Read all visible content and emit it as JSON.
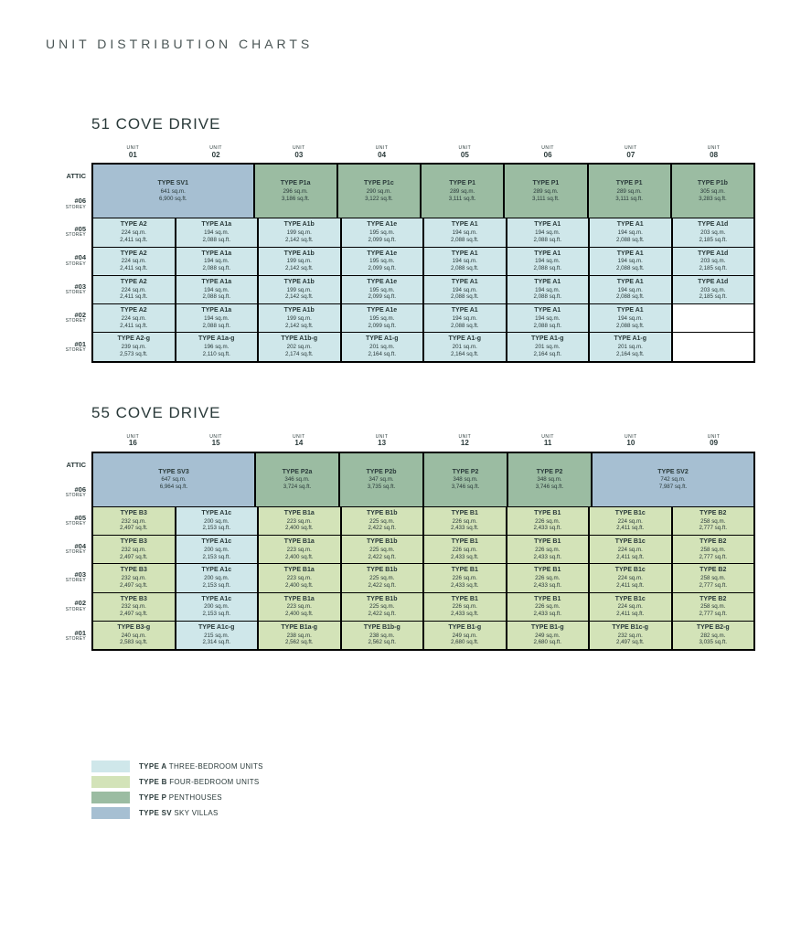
{
  "heading": "UNIT DISTRIBUTION CHARTS",
  "colors": {
    "typeA": "#cfe7ea",
    "typeB": "#d3e3b8",
    "typeP": "#9bbca2",
    "typeSV": "#a6bfd2",
    "border": "#000000",
    "bg": "#ffffff"
  },
  "unit_header_label": "UNIT",
  "storey_sublabel": "STOREY",
  "sections": [
    {
      "title": "51 COVE DRIVE",
      "units": [
        "01",
        "02",
        "03",
        "04",
        "05",
        "06",
        "07",
        "08"
      ],
      "storeys": [
        {
          "label": "ATTIC",
          "sub": ""
        },
        {
          "label": "#06",
          "sub": "STOREY"
        },
        {
          "label": "#05",
          "sub": "STOREY"
        },
        {
          "label": "#04",
          "sub": "STOREY"
        },
        {
          "label": "#03",
          "sub": "STOREY"
        },
        {
          "label": "#02",
          "sub": "STOREY"
        },
        {
          "label": "#01",
          "sub": "STOREY"
        }
      ],
      "attic_span_rows": 2,
      "rows": [
        [
          {
            "span": 2,
            "type": "SV",
            "name": "TYPE SV1",
            "sqm": "641 sq.m.",
            "sqft": "6,900 sq.ft."
          },
          {
            "type": "P",
            "name": "TYPE P1a",
            "sqm": "296 sq.m.",
            "sqft": "3,186 sq.ft."
          },
          {
            "type": "P",
            "name": "TYPE P1c",
            "sqm": "290 sq.m.",
            "sqft": "3,122 sq.ft."
          },
          {
            "type": "P",
            "name": "TYPE P1",
            "sqm": "289 sq.m.",
            "sqft": "3,111 sq.ft."
          },
          {
            "type": "P",
            "name": "TYPE P1",
            "sqm": "289 sq.m.",
            "sqft": "3,111 sq.ft."
          },
          {
            "type": "P",
            "name": "TYPE P1",
            "sqm": "289 sq.m.",
            "sqft": "3,111 sq.ft."
          },
          {
            "type": "P",
            "name": "TYPE P1b",
            "sqm": "305 sq.m.",
            "sqft": "3,283 sq.ft."
          }
        ],
        [
          {
            "type": "A",
            "name": "TYPE A2",
            "sqm": "224 sq.m.",
            "sqft": "2,411 sq.ft."
          },
          {
            "type": "A",
            "name": "TYPE A1a",
            "sqm": "194 sq.m.",
            "sqft": "2,088 sq.ft."
          },
          {
            "type": "A",
            "name": "TYPE A1b",
            "sqm": "199 sq.m.",
            "sqft": "2,142 sq.ft."
          },
          {
            "type": "A",
            "name": "TYPE A1e",
            "sqm": "195 sq.m.",
            "sqft": "2,099 sq.ft."
          },
          {
            "type": "A",
            "name": "TYPE A1",
            "sqm": "194 sq.m.",
            "sqft": "2,088 sq.ft."
          },
          {
            "type": "A",
            "name": "TYPE A1",
            "sqm": "194 sq.m.",
            "sqft": "2,088 sq.ft."
          },
          {
            "type": "A",
            "name": "TYPE A1",
            "sqm": "194 sq.m.",
            "sqft": "2,088 sq.ft."
          },
          {
            "type": "A",
            "name": "TYPE A1d",
            "sqm": "203 sq.m.",
            "sqft": "2,185 sq.ft."
          }
        ],
        [
          {
            "type": "A",
            "name": "TYPE A2",
            "sqm": "224 sq.m.",
            "sqft": "2,411 sq.ft."
          },
          {
            "type": "A",
            "name": "TYPE A1a",
            "sqm": "194 sq.m.",
            "sqft": "2,088 sq.ft."
          },
          {
            "type": "A",
            "name": "TYPE A1b",
            "sqm": "199 sq.m.",
            "sqft": "2,142 sq.ft."
          },
          {
            "type": "A",
            "name": "TYPE A1e",
            "sqm": "195 sq.m.",
            "sqft": "2,099 sq.ft."
          },
          {
            "type": "A",
            "name": "TYPE A1",
            "sqm": "194 sq.m.",
            "sqft": "2,088 sq.ft."
          },
          {
            "type": "A",
            "name": "TYPE A1",
            "sqm": "194 sq.m.",
            "sqft": "2,088 sq.ft."
          },
          {
            "type": "A",
            "name": "TYPE A1",
            "sqm": "194 sq.m.",
            "sqft": "2,088 sq.ft."
          },
          {
            "type": "A",
            "name": "TYPE A1d",
            "sqm": "203 sq.m.",
            "sqft": "2,185 sq.ft."
          }
        ],
        [
          {
            "type": "A",
            "name": "TYPE A2",
            "sqm": "224 sq.m.",
            "sqft": "2,411 sq.ft."
          },
          {
            "type": "A",
            "name": "TYPE A1a",
            "sqm": "194 sq.m.",
            "sqft": "2,088 sq.ft."
          },
          {
            "type": "A",
            "name": "TYPE A1b",
            "sqm": "199 sq.m.",
            "sqft": "2,142 sq.ft."
          },
          {
            "type": "A",
            "name": "TYPE A1e",
            "sqm": "195 sq.m.",
            "sqft": "2,099 sq.ft."
          },
          {
            "type": "A",
            "name": "TYPE A1",
            "sqm": "194 sq.m.",
            "sqft": "2,088 sq.ft."
          },
          {
            "type": "A",
            "name": "TYPE A1",
            "sqm": "194 sq.m.",
            "sqft": "2,088 sq.ft."
          },
          {
            "type": "A",
            "name": "TYPE A1",
            "sqm": "194 sq.m.",
            "sqft": "2,088 sq.ft."
          },
          {
            "type": "A",
            "name": "TYPE A1d",
            "sqm": "203 sq.m.",
            "sqft": "2,185 sq.ft."
          }
        ],
        [
          {
            "type": "A",
            "name": "TYPE A2",
            "sqm": "224 sq.m.",
            "sqft": "2,411 sq.ft."
          },
          {
            "type": "A",
            "name": "TYPE A1a",
            "sqm": "194 sq.m.",
            "sqft": "2,088 sq.ft."
          },
          {
            "type": "A",
            "name": "TYPE A1b",
            "sqm": "199 sq.m.",
            "sqft": "2,142 sq.ft."
          },
          {
            "type": "A",
            "name": "TYPE A1e",
            "sqm": "195 sq.m.",
            "sqft": "2,099 sq.ft."
          },
          {
            "type": "A",
            "name": "TYPE A1",
            "sqm": "194 sq.m.",
            "sqft": "2,088 sq.ft."
          },
          {
            "type": "A",
            "name": "TYPE A1",
            "sqm": "194 sq.m.",
            "sqft": "2,088 sq.ft."
          },
          {
            "type": "A",
            "name": "TYPE A1",
            "sqm": "194 sq.m.",
            "sqft": "2,088 sq.ft."
          },
          {
            "type": "empty"
          }
        ],
        [
          {
            "type": "A",
            "name": "TYPE A2-g",
            "sqm": "239 sq.m.",
            "sqft": "2,573 sq.ft."
          },
          {
            "type": "A",
            "name": "TYPE A1a-g",
            "sqm": "196 sq.m.",
            "sqft": "2,110 sq.ft."
          },
          {
            "type": "A",
            "name": "TYPE A1b-g",
            "sqm": "202 sq.m.",
            "sqft": "2,174 sq.ft."
          },
          {
            "type": "A",
            "name": "TYPE A1-g",
            "sqm": "201 sq.m.",
            "sqft": "2,164 sq.ft."
          },
          {
            "type": "A",
            "name": "TYPE A1-g",
            "sqm": "201 sq.m.",
            "sqft": "2,164 sq.ft."
          },
          {
            "type": "A",
            "name": "TYPE A1-g",
            "sqm": "201 sq.m.",
            "sqft": "2,164 sq.ft."
          },
          {
            "type": "A",
            "name": "TYPE A1-g",
            "sqm": "201 sq.m.",
            "sqft": "2,164 sq.ft."
          },
          {
            "type": "empty"
          }
        ]
      ]
    },
    {
      "title": "55 COVE DRIVE",
      "units": [
        "16",
        "15",
        "14",
        "13",
        "12",
        "11",
        "10",
        "09"
      ],
      "storeys": [
        {
          "label": "ATTIC",
          "sub": ""
        },
        {
          "label": "#06",
          "sub": "STOREY"
        },
        {
          "label": "#05",
          "sub": "STOREY"
        },
        {
          "label": "#04",
          "sub": "STOREY"
        },
        {
          "label": "#03",
          "sub": "STOREY"
        },
        {
          "label": "#02",
          "sub": "STOREY"
        },
        {
          "label": "#01",
          "sub": "STOREY"
        }
      ],
      "attic_span_rows": 2,
      "rows": [
        [
          {
            "span": 2,
            "type": "SV",
            "name": "TYPE SV3",
            "sqm": "647 sq.m.",
            "sqft": "6,964 sq.ft."
          },
          {
            "type": "P",
            "name": "TYPE P2a",
            "sqm": "346 sq.m.",
            "sqft": "3,724 sq.ft."
          },
          {
            "type": "P",
            "name": "TYPE P2b",
            "sqm": "347 sq.m.",
            "sqft": "3,735 sq.ft."
          },
          {
            "type": "P",
            "name": "TYPE P2",
            "sqm": "348 sq.m.",
            "sqft": "3,746 sq.ft."
          },
          {
            "type": "P",
            "name": "TYPE P2",
            "sqm": "348 sq.m.",
            "sqft": "3,746 sq.ft."
          },
          {
            "span": 2,
            "type": "SV",
            "name": "TYPE SV2",
            "sqm": "742 sq.m.",
            "sqft": "7,987 sq.ft."
          }
        ],
        [
          {
            "type": "B",
            "name": "TYPE B3",
            "sqm": "232 sq.m.",
            "sqft": "2,497 sq.ft."
          },
          {
            "type": "A",
            "name": "TYPE A1c",
            "sqm": "200 sq.m.",
            "sqft": "2,153 sq.ft."
          },
          {
            "type": "B",
            "name": "TYPE B1a",
            "sqm": "223 sq.m.",
            "sqft": "2,400 sq.ft."
          },
          {
            "type": "B",
            "name": "TYPE B1b",
            "sqm": "225 sq.m.",
            "sqft": "2,422 sq.ft."
          },
          {
            "type": "B",
            "name": "TYPE B1",
            "sqm": "226 sq.m.",
            "sqft": "2,433 sq.ft."
          },
          {
            "type": "B",
            "name": "TYPE B1",
            "sqm": "226 sq.m.",
            "sqft": "2,433 sq.ft."
          },
          {
            "type": "B",
            "name": "TYPE B1c",
            "sqm": "224 sq.m.",
            "sqft": "2,411 sq.ft."
          },
          {
            "type": "B",
            "name": "TYPE B2",
            "sqm": "258 sq.m.",
            "sqft": "2,777 sq.ft."
          }
        ],
        [
          {
            "type": "B",
            "name": "TYPE B3",
            "sqm": "232 sq.m.",
            "sqft": "2,497 sq.ft."
          },
          {
            "type": "A",
            "name": "TYPE A1c",
            "sqm": "200 sq.m.",
            "sqft": "2,153 sq.ft."
          },
          {
            "type": "B",
            "name": "TYPE B1a",
            "sqm": "223 sq.m.",
            "sqft": "2,400 sq.ft."
          },
          {
            "type": "B",
            "name": "TYPE B1b",
            "sqm": "225 sq.m.",
            "sqft": "2,422 sq.ft."
          },
          {
            "type": "B",
            "name": "TYPE B1",
            "sqm": "226 sq.m.",
            "sqft": "2,433 sq.ft."
          },
          {
            "type": "B",
            "name": "TYPE B1",
            "sqm": "226 sq.m.",
            "sqft": "2,433 sq.ft."
          },
          {
            "type": "B",
            "name": "TYPE B1c",
            "sqm": "224 sq.m.",
            "sqft": "2,411 sq.ft."
          },
          {
            "type": "B",
            "name": "TYPE B2",
            "sqm": "258 sq.m.",
            "sqft": "2,777 sq.ft."
          }
        ],
        [
          {
            "type": "B",
            "name": "TYPE B3",
            "sqm": "232 sq.m.",
            "sqft": "2,497 sq.ft."
          },
          {
            "type": "A",
            "name": "TYPE A1c",
            "sqm": "200 sq.m.",
            "sqft": "2,153 sq.ft."
          },
          {
            "type": "B",
            "name": "TYPE B1a",
            "sqm": "223 sq.m.",
            "sqft": "2,400 sq.ft."
          },
          {
            "type": "B",
            "name": "TYPE B1b",
            "sqm": "225 sq.m.",
            "sqft": "2,422 sq.ft."
          },
          {
            "type": "B",
            "name": "TYPE B1",
            "sqm": "226 sq.m.",
            "sqft": "2,433 sq.ft."
          },
          {
            "type": "B",
            "name": "TYPE B1",
            "sqm": "226 sq.m.",
            "sqft": "2,433 sq.ft."
          },
          {
            "type": "B",
            "name": "TYPE B1c",
            "sqm": "224 sq.m.",
            "sqft": "2,411 sq.ft."
          },
          {
            "type": "B",
            "name": "TYPE B2",
            "sqm": "258 sq.m.",
            "sqft": "2,777 sq.ft."
          }
        ],
        [
          {
            "type": "B",
            "name": "TYPE B3",
            "sqm": "232 sq.m.",
            "sqft": "2,497 sq.ft."
          },
          {
            "type": "A",
            "name": "TYPE A1c",
            "sqm": "200 sq.m.",
            "sqft": "2,153 sq.ft."
          },
          {
            "type": "B",
            "name": "TYPE B1a",
            "sqm": "223 sq.m.",
            "sqft": "2,400 sq.ft."
          },
          {
            "type": "B",
            "name": "TYPE B1b",
            "sqm": "225 sq.m.",
            "sqft": "2,422 sq.ft."
          },
          {
            "type": "B",
            "name": "TYPE B1",
            "sqm": "226 sq.m.",
            "sqft": "2,433 sq.ft."
          },
          {
            "type": "B",
            "name": "TYPE B1",
            "sqm": "226 sq.m.",
            "sqft": "2,433 sq.ft."
          },
          {
            "type": "B",
            "name": "TYPE B1c",
            "sqm": "224 sq.m.",
            "sqft": "2,411 sq.ft."
          },
          {
            "type": "B",
            "name": "TYPE B2",
            "sqm": "258 sq.m.",
            "sqft": "2,777 sq.ft."
          }
        ],
        [
          {
            "type": "B",
            "name": "TYPE B3-g",
            "sqm": "240 sq.m.",
            "sqft": "2,583 sq.ft."
          },
          {
            "type": "A",
            "name": "TYPE A1c-g",
            "sqm": "215 sq.m.",
            "sqft": "2,314 sq.ft."
          },
          {
            "type": "B",
            "name": "TYPE B1a-g",
            "sqm": "238 sq.m.",
            "sqft": "2,562 sq.ft."
          },
          {
            "type": "B",
            "name": "TYPE B1b-g",
            "sqm": "238 sq.m.",
            "sqft": "2,562 sq.ft."
          },
          {
            "type": "B",
            "name": "TYPE B1-g",
            "sqm": "249 sq.m.",
            "sqft": "2,680 sq.ft."
          },
          {
            "type": "B",
            "name": "TYPE B1-g",
            "sqm": "249 sq.m.",
            "sqft": "2,680 sq.ft."
          },
          {
            "type": "B",
            "name": "TYPE B1c-g",
            "sqm": "232 sq.m.",
            "sqft": "2,497 sq.ft."
          },
          {
            "type": "B",
            "name": "TYPE B2-g",
            "sqm": "282 sq.m.",
            "sqft": "3,035 sq.ft."
          }
        ]
      ]
    }
  ],
  "legend": [
    {
      "color": "typeA",
      "bold": "TYPE A",
      "rest": " THREE-BEDROOM UNITS"
    },
    {
      "color": "typeB",
      "bold": "TYPE B",
      "rest": " FOUR-BEDROOM UNITS"
    },
    {
      "color": "typeP",
      "bold": "TYPE P",
      "rest": " PENTHOUSES"
    },
    {
      "color": "typeSV",
      "bold": "TYPE SV",
      "rest": " SKY VILLAS"
    }
  ]
}
